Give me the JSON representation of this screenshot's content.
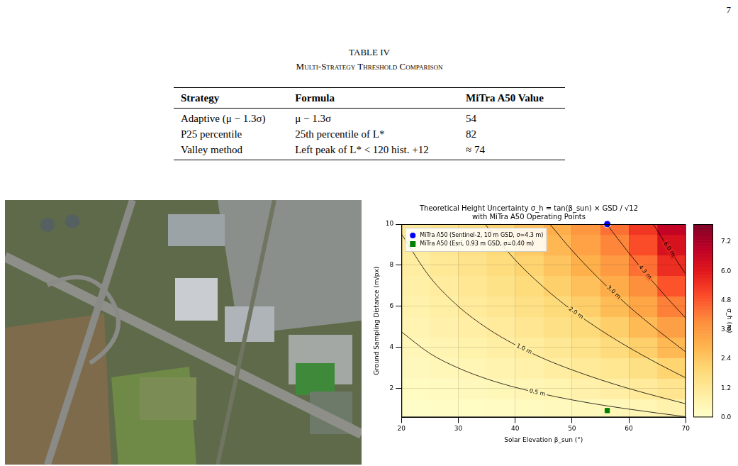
{
  "page_number": "7",
  "table": {
    "title": "TABLE IV",
    "subtitle": "Multi-Strategy Threshold Comparison",
    "header": [
      "Strategy",
      "Formula",
      "MiTra A50 Value"
    ],
    "rows": [
      [
        "Adaptive (μ − 1.3σ)",
        "μ − 1.3σ",
        "54"
      ],
      [
        "P25 percentile",
        "25th percentile of L*",
        "82"
      ],
      [
        "Valley method",
        "Left peak of L* < 120 hist. +12",
        "≈ 74"
      ]
    ]
  },
  "chart_data": {
    "type": "contour",
    "title": "Theoretical Height Uncertainty σ_h = tan(β_sun) × GSD / √12",
    "subtitle": "with MiTra A50 Operating Points",
    "x_label": "Solar Elevation β_sun (°)",
    "y_label": "Ground Sampling Distance (m/px)",
    "xlim": [
      20,
      70
    ],
    "xticks": [
      20,
      30,
      40,
      50,
      60,
      70
    ],
    "ylim": [
      0.6,
      10
    ],
    "yticks": [
      2,
      4,
      6,
      8,
      10
    ],
    "grid": true,
    "legend": "upper left",
    "series": [
      {
        "name": "MiTra A50 (Sentinel-2, 10 m GSD, σ=4.3 m)",
        "color": "#0000ff",
        "marker": "circle",
        "x": [
          56.2
        ],
        "y": [
          10
        ]
      },
      {
        "name": "MiTra A50 (Esri, 0.93 m GSD, σ=0.40 m)",
        "color": "#008000",
        "marker": "square",
        "x": [
          56.2
        ],
        "y": [
          0.93
        ]
      }
    ],
    "contours": [
      {
        "level": 0.5,
        "label": "0.5 m",
        "x": [
          20,
          25,
          30,
          35,
          40,
          45,
          50,
          55,
          60,
          65,
          70
        ],
        "y": [
          4.76,
          3.71,
          3.0,
          2.47,
          2.06,
          1.73,
          1.45,
          1.21,
          1.0,
          0.81,
          0.63
        ]
      },
      {
        "level": 1.0,
        "label": "1.0 m",
        "x": [
          20,
          25,
          30,
          35,
          40,
          45,
          50,
          55,
          60,
          65,
          70
        ],
        "y": [
          9.52,
          7.43,
          6.0,
          4.95,
          4.13,
          3.46,
          2.91,
          2.43,
          2.0,
          1.62,
          1.26
        ]
      },
      {
        "level": 2.0,
        "label": "2.0 m",
        "x": [
          34.7,
          40,
          45,
          50,
          55,
          60,
          65,
          70
        ],
        "y": [
          10,
          8.26,
          6.93,
          5.81,
          4.85,
          4.0,
          3.23,
          2.52
        ]
      },
      {
        "level": 3.0,
        "label": "3.0 m",
        "x": [
          46.1,
          50,
          55,
          60,
          65,
          70
        ],
        "y": [
          10,
          8.72,
          7.28,
          6.0,
          4.85,
          3.78
        ]
      },
      {
        "level": 4.3,
        "label": "4.3 m",
        "x": [
          56.1,
          60,
          65,
          70
        ],
        "y": [
          10,
          8.6,
          6.95,
          5.42
        ]
      },
      {
        "level": 6.0,
        "label": "6.0 m",
        "x": [
          64.3,
          67,
          70
        ],
        "y": [
          10,
          8.82,
          7.57
        ]
      }
    ],
    "heatmap": {
      "x_edges": [
        20,
        25,
        30,
        35,
        40,
        45,
        50,
        55,
        60,
        65,
        70
      ],
      "y_edges": [
        0.6,
        1.5,
        2.5,
        3.5,
        4.5,
        5.5,
        6.5,
        7.5,
        8.5,
        9.5,
        10
      ],
      "values": [
        [
          0.12,
          0.15,
          0.18,
          0.22,
          0.26,
          0.32,
          0.38,
          0.45,
          0.55,
          0.7
        ],
        [
          0.24,
          0.3,
          0.37,
          0.44,
          0.53,
          0.63,
          0.75,
          0.91,
          1.11,
          1.39
        ],
        [
          0.36,
          0.45,
          0.55,
          0.66,
          0.79,
          0.95,
          1.13,
          1.36,
          1.66,
          2.09
        ],
        [
          0.48,
          0.6,
          0.74,
          0.89,
          1.06,
          1.26,
          1.5,
          1.81,
          2.22,
          2.79
        ],
        [
          0.6,
          0.75,
          0.92,
          1.11,
          1.32,
          1.58,
          1.88,
          2.27,
          2.77,
          3.48
        ],
        [
          0.72,
          0.9,
          1.1,
          1.33,
          1.59,
          1.89,
          2.26,
          2.72,
          3.33,
          4.18
        ],
        [
          0.84,
          1.05,
          1.29,
          1.55,
          1.85,
          2.21,
          2.63,
          3.17,
          3.88,
          4.88
        ],
        [
          0.96,
          1.2,
          1.47,
          1.77,
          2.12,
          2.52,
          3.01,
          3.62,
          4.44,
          5.58
        ],
        [
          1.08,
          1.35,
          1.66,
          1.99,
          2.38,
          2.84,
          3.39,
          4.08,
          4.99,
          6.27
        ],
        [
          1.17,
          1.47,
          1.79,
          2.16,
          2.58,
          3.07,
          3.67,
          4.42,
          5.41,
          6.79
        ]
      ]
    },
    "colorbar": {
      "label": "σ_h (m)",
      "range": [
        0,
        7.93
      ],
      "ticks": [
        {
          "value": 0,
          "label": "0.0"
        },
        1.2,
        2.4,
        3.6,
        4.8,
        {
          "value": 6,
          "label": "6.0"
        },
        7.2
      ]
    }
  }
}
